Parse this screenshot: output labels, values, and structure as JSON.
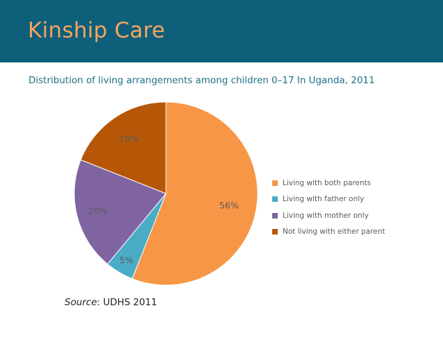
{
  "header": {
    "title": "Kinship Care"
  },
  "chart_data": {
    "type": "pie",
    "title": "Distribution of living arrangements among children 0–17 In Uganda, 2011",
    "labels": [
      "Living with both parents",
      "Living with father only",
      "Living with mother only",
      "Not living with either parent"
    ],
    "values": [
      56,
      5,
      20,
      19
    ],
    "value_labels": [
      "56%",
      "5%",
      "20%",
      "19%"
    ],
    "colors": [
      "#f79646",
      "#4bacc6",
      "#8064a2",
      "#b65708"
    ],
    "legend_position": "right"
  },
  "source": {
    "prefix": "Source",
    "text": ": UDHS 2011"
  }
}
